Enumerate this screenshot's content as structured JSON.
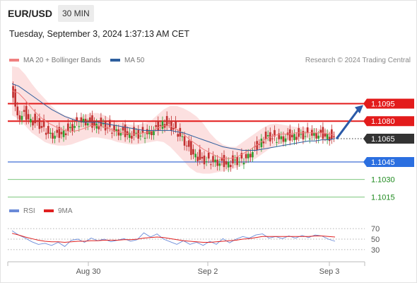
{
  "header": {
    "symbol": "EUR/USD",
    "timeframe": "30 MIN",
    "datetime": "Tuesday, September 3, 2024 1:37:13 AM CET"
  },
  "legend": {
    "ma20_bb": {
      "label": "MA 20 + Bollinger Bands",
      "color": "#f08080"
    },
    "ma50": {
      "label": "MA 50",
      "color": "#2e5f9e"
    },
    "credit": "Research © 2024 Trading Central"
  },
  "rsi_legend": {
    "rsi": {
      "label": "RSI",
      "color": "#6a8ad8"
    },
    "ma9": {
      "label": "9MA",
      "color": "#e02020"
    }
  },
  "chart_data": [
    {
      "type": "candlestick",
      "title": "EUR/USD",
      "timeframe": "30 MIN",
      "ylim": [
        1.1008,
        1.1128
      ],
      "levels": [
        {
          "label": "1.1095",
          "value": 1.1095,
          "color": "#e31b1b",
          "style": "thick"
        },
        {
          "label": "1.1080",
          "value": 1.108,
          "color": "#e31b1b",
          "style": "thick"
        },
        {
          "label": "1.1065",
          "value": 1.1065,
          "color": "#333333",
          "style": "dotted",
          "note": "current price"
        },
        {
          "label": "1.1045",
          "value": 1.1045,
          "color": "#2b5fd0",
          "style": "thin"
        },
        {
          "label": "1.1030",
          "value": 1.103,
          "color": "#1e8a1e",
          "style": "thin"
        },
        {
          "label": "1.1015",
          "value": 1.1015,
          "color": "#1e8a1e",
          "style": "thin"
        }
      ],
      "x_ticks": [
        "Aug 30",
        "Sep 2",
        "Sep 3"
      ],
      "close_series": [
        1.1115,
        1.1085,
        1.1088,
        1.1082,
        1.108,
        1.1075,
        1.107,
        1.107,
        1.1072,
        1.1075,
        1.108,
        1.1082,
        1.108,
        1.1078,
        1.1078,
        1.1075,
        1.1073,
        1.1072,
        1.107,
        1.107,
        1.107,
        1.1072,
        1.1075,
        1.108,
        1.1078,
        1.1074,
        1.1067,
        1.1058,
        1.1052,
        1.1048,
        1.1048,
        1.1047,
        1.1046,
        1.1045,
        1.1047,
        1.1048,
        1.1052,
        1.1058,
        1.1065,
        1.1068,
        1.1067,
        1.1067,
        1.1068,
        1.1069,
        1.1069,
        1.107,
        1.107,
        1.107,
        1.1069,
        1.1066
      ],
      "bollinger_upper": [
        1.1127,
        1.1126,
        1.112,
        1.1112,
        1.1105,
        1.1099,
        1.1093,
        1.1088,
        1.1085,
        1.1083,
        1.1083,
        1.1085,
        1.1087,
        1.1087,
        1.1085,
        1.1082,
        1.1079,
        1.1078,
        1.1077,
        1.1077,
        1.1078,
        1.108,
        1.1085,
        1.109,
        1.1093,
        1.1093,
        1.1091,
        1.1088,
        1.1084,
        1.1078,
        1.107,
        1.1064,
        1.106,
        1.1058,
        1.1058,
        1.1062,
        1.1066,
        1.107,
        1.1074,
        1.1077,
        1.1078,
        1.1077,
        1.1076,
        1.1075,
        1.1075,
        1.1074,
        1.1074,
        1.1073,
        1.1072,
        1.1071
      ],
      "bollinger_lower": [
        1.1085,
        1.1082,
        1.1076,
        1.107,
        1.1066,
        1.1062,
        1.106,
        1.1059,
        1.1059,
        1.106,
        1.1062,
        1.1064,
        1.1066,
        1.1066,
        1.1065,
        1.1064,
        1.1062,
        1.1061,
        1.106,
        1.106,
        1.1061,
        1.1062,
        1.1063,
        1.1062,
        1.1058,
        1.1052,
        1.1046,
        1.104,
        1.1036,
        1.1035,
        1.1035,
        1.1036,
        1.1037,
        1.1038,
        1.104,
        1.1042,
        1.1045,
        1.1048,
        1.1052,
        1.1056,
        1.1059,
        1.1061,
        1.1063,
        1.1064,
        1.1065,
        1.1065,
        1.1066,
        1.1066,
        1.1066,
        1.1066
      ],
      "ma20": [
        1.1106,
        1.1104,
        1.1098,
        1.1091,
        1.1085,
        1.108,
        1.1077,
        1.1074,
        1.1072,
        1.1071,
        1.1072,
        1.1074,
        1.1076,
        1.1076,
        1.1075,
        1.1073,
        1.1071,
        1.107,
        1.1069,
        1.1069,
        1.107,
        1.1071,
        1.1074,
        1.1076,
        1.1076,
        1.1073,
        1.1069,
        1.1064,
        1.106,
        1.1056,
        1.1053,
        1.105,
        1.1048,
        1.1048,
        1.1049,
        1.1052,
        1.1055,
        1.1059,
        1.1063,
        1.1066,
        1.1068,
        1.1069,
        1.1069,
        1.107,
        1.107,
        1.107,
        1.107,
        1.107,
        1.1069,
        1.1068
      ],
      "ma50": [
        1.1112,
        1.111,
        1.1106,
        1.1102,
        1.1098,
        1.1094,
        1.109,
        1.1087,
        1.1084,
        1.1082,
        1.108,
        1.1079,
        1.1079,
        1.1079,
        1.1078,
        1.1077,
        1.1076,
        1.1075,
        1.1074,
        1.1073,
        1.1072,
        1.1072,
        1.1072,
        1.1072,
        1.1072,
        1.1071,
        1.107,
        1.1068,
        1.1066,
        1.1064,
        1.1062,
        1.106,
        1.1058,
        1.1057,
        1.1056,
        1.1055,
        1.1055,
        1.1055,
        1.1056,
        1.1057,
        1.1058,
        1.1059,
        1.106,
        1.1061,
        1.1062,
        1.1063,
        1.1063,
        1.1064,
        1.1064,
        1.1065
      ]
    },
    {
      "type": "line",
      "title": "RSI",
      "ylim": [
        15,
        85
      ],
      "y_ticks": [
        70,
        50,
        30
      ],
      "series": [
        {
          "name": "RSI",
          "values": [
            66,
            58,
            52,
            45,
            40,
            42,
            38,
            44,
            36,
            48,
            50,
            44,
            52,
            47,
            50,
            45,
            48,
            51,
            46,
            49,
            62,
            54,
            60,
            50,
            45,
            40,
            47,
            40,
            44,
            38,
            46,
            40,
            51,
            43,
            50,
            55,
            52,
            58,
            60,
            52,
            55,
            51,
            56,
            52,
            57,
            53,
            58,
            56,
            50,
            46
          ]
        },
        {
          "name": "9MA",
          "values": [
            61,
            58,
            54,
            51,
            48,
            46,
            45,
            45,
            44,
            45,
            46,
            46,
            47,
            47,
            48,
            48,
            48,
            49,
            49,
            50,
            52,
            53,
            54,
            53,
            51,
            49,
            47,
            46,
            45,
            44,
            44,
            45,
            46,
            47,
            48,
            50,
            51,
            53,
            55,
            55,
            55,
            55,
            55,
            55,
            55,
            55,
            56,
            56,
            55,
            54
          ]
        }
      ]
    }
  ]
}
